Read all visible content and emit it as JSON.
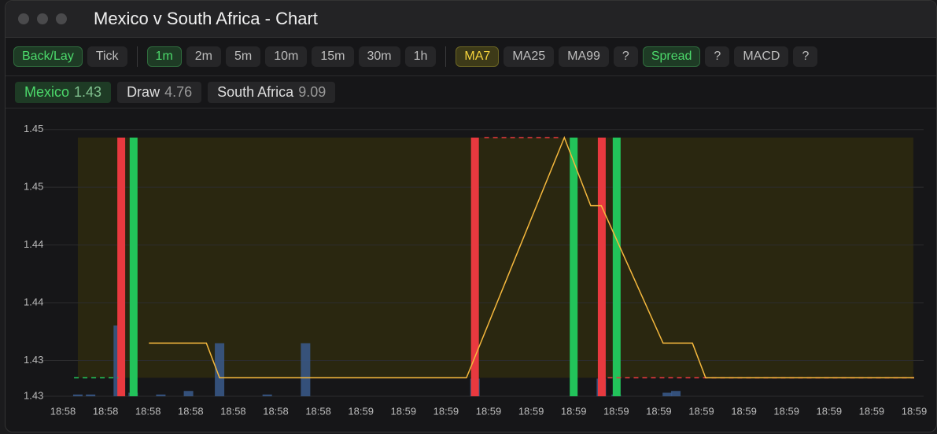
{
  "window_title": "Mexico v South Africa - Chart",
  "toolbar": {
    "groups": [
      [
        {
          "label": "Back/Lay",
          "active": "green"
        },
        {
          "label": "Tick"
        }
      ],
      [
        {
          "label": "1m",
          "active": "green"
        },
        {
          "label": "2m"
        },
        {
          "label": "5m"
        },
        {
          "label": "10m"
        },
        {
          "label": "15m"
        },
        {
          "label": "30m"
        },
        {
          "label": "1h"
        }
      ],
      [
        {
          "label": "MA7",
          "active": "yellow"
        },
        {
          "label": "MA25"
        },
        {
          "label": "MA99"
        },
        {
          "label": "?"
        },
        {
          "label": "Spread",
          "active": "green"
        },
        {
          "label": "?"
        },
        {
          "label": "MACD"
        },
        {
          "label": "?"
        }
      ]
    ]
  },
  "runners": [
    {
      "name": "Mexico",
      "price": 1.43,
      "active": "green"
    },
    {
      "name": "Draw",
      "price": 4.76
    },
    {
      "name": "South Africa",
      "price": 9.09
    }
  ],
  "chart_data": {
    "type": "line",
    "x": [
      2.02,
      3.37,
      3.68,
      9.48,
      11.78,
      12.4,
      12.65,
      14.1,
      14.79,
      15.1,
      20.0
    ],
    "series": [
      {
        "color": "#f5b83d",
        "values": [
          1.4355,
          1.4355,
          1.4325,
          1.4325,
          1.4533,
          1.4474,
          1.4474,
          1.4355,
          1.4355,
          1.4325,
          1.4325
        ]
      }
    ],
    "markers": [
      {
        "x": 1.37,
        "color": "#e8393f"
      },
      {
        "x": 1.66,
        "color": "#22c35a"
      },
      {
        "x": 9.68,
        "color": "#e8393f"
      },
      {
        "x": 12.0,
        "color": "#22c35a"
      },
      {
        "x": 12.66,
        "color": "#e8393f"
      },
      {
        "x": 13.01,
        "color": "#22c35a"
      }
    ],
    "reference_lines": [
      {
        "value": 1.4325,
        "color": "#22c35a",
        "x": [
          0.26,
          1.3
        ]
      },
      {
        "value": 1.4533,
        "color": "#e8393f",
        "x": [
          9.9,
          11.7
        ]
      },
      {
        "value": 1.4325,
        "color": "#e8393f",
        "x": [
          12.8,
          20.0
        ]
      }
    ],
    "range_band": {
      "x": [
        0.35,
        19.98
      ],
      "values": [
        1.4325,
        1.4533
      ],
      "color": "#2a2710"
    },
    "volume": {
      "x": [
        0.35,
        0.65,
        1.3,
        1.65,
        2.3,
        2.95,
        3.68,
        4.8,
        5.7,
        9.68,
        12.65,
        13.0,
        14.2,
        14.4
      ],
      "values": [
        1,
        1,
        40,
        2,
        1,
        3,
        30,
        1,
        30,
        10,
        10,
        1,
        2,
        3
      ],
      "color": "#3a5a8c"
    },
    "xlim": [
      0,
      20
    ],
    "ylim": [
      1.4309,
      1.455
    ],
    "xticks": [
      {
        "value": 0,
        "label": "18:58"
      },
      {
        "value": 1,
        "label": "18:58"
      },
      {
        "value": 2,
        "label": "18:58"
      },
      {
        "value": 3,
        "label": "18:58"
      },
      {
        "value": 4,
        "label": "18:58"
      },
      {
        "value": 5,
        "label": "18:58"
      },
      {
        "value": 6,
        "label": "18:58"
      },
      {
        "value": 7,
        "label": "18:59"
      },
      {
        "value": 8,
        "label": "18:59"
      },
      {
        "value": 9,
        "label": "18:59"
      },
      {
        "value": 10,
        "label": "18:59"
      },
      {
        "value": 11,
        "label": "18:59"
      },
      {
        "value": 12,
        "label": "18:59"
      },
      {
        "value": 13,
        "label": "18:59"
      },
      {
        "value": 14,
        "label": "18:59"
      },
      {
        "value": 15,
        "label": "18:59"
      },
      {
        "value": 16,
        "label": "18:59"
      },
      {
        "value": 17,
        "label": "18:59"
      },
      {
        "value": 18,
        "label": "18:59"
      },
      {
        "value": 19,
        "label": "18:59"
      },
      {
        "value": 20,
        "label": "18:59"
      }
    ],
    "yticks": [
      {
        "value": 1.4309,
        "label": "1.43"
      },
      {
        "value": 1.434,
        "label": "1.43"
      },
      {
        "value": 1.439,
        "label": "1.44"
      },
      {
        "value": 1.444,
        "label": "1.44"
      },
      {
        "value": 1.449,
        "label": "1.45"
      },
      {
        "value": 1.454,
        "label": "1.45"
      }
    ],
    "grid": true
  }
}
